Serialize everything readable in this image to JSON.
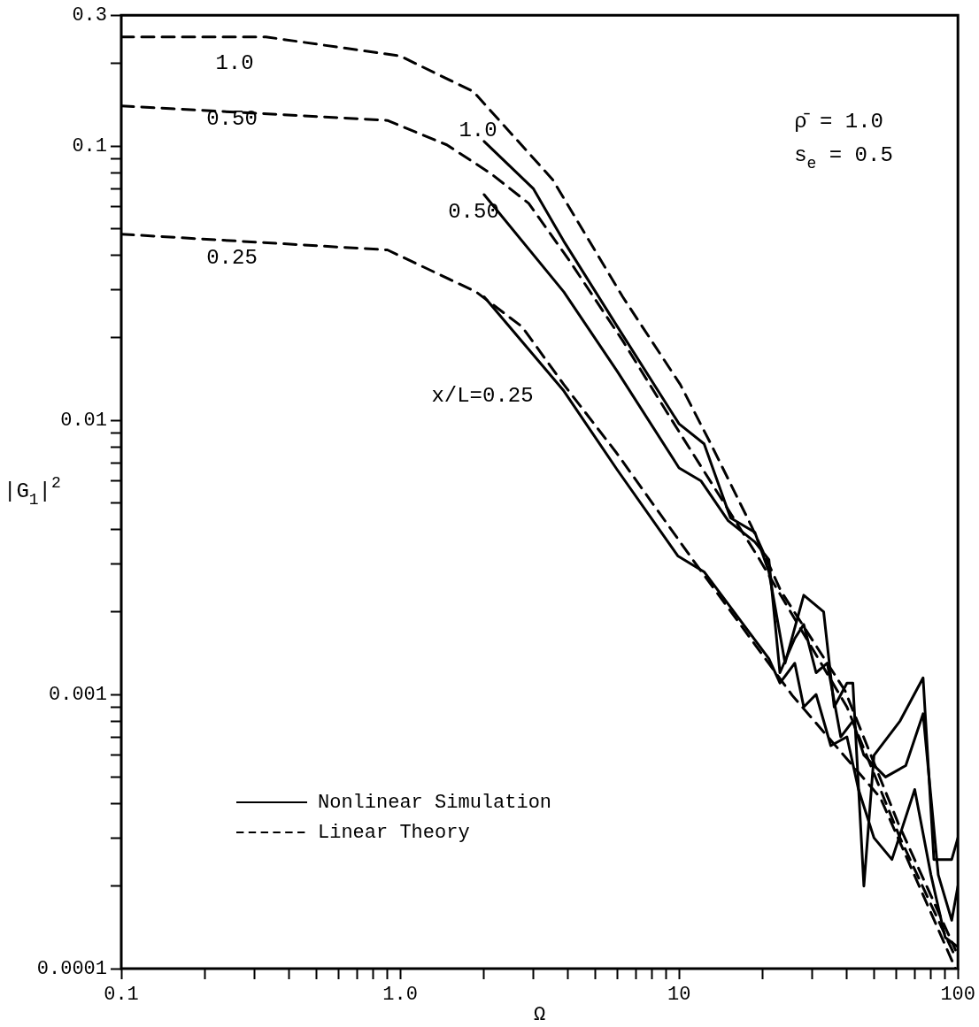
{
  "chart_data": {
    "type": "line",
    "xlabel": "Ω",
    "ylabel": "|G$_{1}$|$^{2}$",
    "log": "xy",
    "grid": false,
    "legend": "bottom left",
    "marker": "none",
    "xlim": [
      0.1,
      100
    ],
    "ylim": [
      0.0001,
      0.3
    ],
    "xticks": [
      0.1,
      {
        "value": 0.2,
        "label": null
      },
      {
        "value": 0.3,
        "label": null
      },
      {
        "value": 0.4,
        "label": null
      },
      {
        "value": 0.5,
        "label": null
      },
      {
        "value": 0.6,
        "label": null
      },
      {
        "value": 0.7,
        "label": null
      },
      {
        "value": 0.8,
        "label": null
      },
      {
        "value": 0.9,
        "label": null
      },
      {
        "value": 1,
        "label": "1.0"
      },
      {
        "value": 2,
        "label": null
      },
      {
        "value": 3,
        "label": null
      },
      {
        "value": 4,
        "label": null
      },
      {
        "value": 5,
        "label": null
      },
      {
        "value": 6,
        "label": null
      },
      {
        "value": 7,
        "label": null
      },
      {
        "value": 8,
        "label": null
      },
      {
        "value": 9,
        "label": null
      },
      10,
      {
        "value": 20,
        "label": null
      },
      {
        "value": 30,
        "label": null
      },
      {
        "value": 40,
        "label": null
      },
      {
        "value": 50,
        "label": null
      },
      {
        "value": 60,
        "label": null
      },
      {
        "value": 70,
        "label": null
      },
      {
        "value": 80,
        "label": null
      },
      {
        "value": 90,
        "label": null
      },
      100
    ],
    "yticks": [
      0.0001,
      {
        "value": 0.0002,
        "label": null
      },
      {
        "value": 0.0003,
        "label": null
      },
      {
        "value": 0.0004,
        "label": null
      },
      {
        "value": 0.0005,
        "label": null
      },
      {
        "value": 0.0006,
        "label": null
      },
      {
        "value": 0.0007,
        "label": null
      },
      {
        "value": 0.0008,
        "label": null
      },
      {
        "value": 0.0009,
        "label": null
      },
      0.001,
      {
        "value": 0.002,
        "label": null
      },
      {
        "value": 0.003,
        "label": null
      },
      {
        "value": 0.004,
        "label": null
      },
      {
        "value": 0.005,
        "label": null
      },
      {
        "value": 0.006,
        "label": null
      },
      {
        "value": 0.007,
        "label": null
      },
      {
        "value": 0.008,
        "label": null
      },
      {
        "value": 0.009,
        "label": null
      },
      0.01,
      {
        "value": 0.02,
        "label": null
      },
      {
        "value": 0.03,
        "label": null
      },
      {
        "value": 0.04,
        "label": null
      },
      {
        "value": 0.05,
        "label": null
      },
      {
        "value": 0.06,
        "label": null
      },
      {
        "value": 0.07,
        "label": null
      },
      {
        "value": 0.08,
        "label": null
      },
      {
        "value": 0.09,
        "label": null
      },
      0.1,
      {
        "value": 0.2,
        "label": null
      },
      0.3
    ],
    "series": [
      {
        "name": "Nonlinear Simulation",
        "color": "#000000",
        "line_style": "solid",
        "x": [
          2,
          3,
          3.86,
          6,
          10,
          12.3,
          15.3,
          18.7,
          21,
          24,
          28,
          33,
          36,
          40,
          42,
          46,
          50,
          62,
          75,
          82,
          95,
          100
        ],
        "values": [
          0.104,
          0.07,
          0.045,
          0.022,
          0.0097,
          0.0082,
          0.0044,
          0.0039,
          0.0028,
          0.0013,
          0.0023,
          0.002,
          0.0009,
          0.0011,
          0.0011,
          0.0002,
          0.0006,
          0.0008,
          0.00115,
          0.00025,
          0.00025,
          0.0003
        ]
      },
      {
        "color": "#000000",
        "line_style": "solid",
        "x": [
          2,
          3.86,
          6,
          10,
          12,
          15,
          18.7,
          21,
          23,
          26,
          28,
          31,
          34,
          38,
          42,
          46,
          55,
          65,
          75,
          85,
          95,
          100
        ],
        "values": [
          0.0665,
          0.0294,
          0.0151,
          0.0067,
          0.006,
          0.0043,
          0.0036,
          0.0031,
          0.0012,
          0.0016,
          0.0018,
          0.0012,
          0.0013,
          0.0007,
          0.0008,
          0.0006,
          0.0005,
          0.00055,
          0.00085,
          0.00022,
          0.00015,
          0.0002
        ]
      },
      {
        "color": "#000000",
        "line_style": "solid",
        "x": [
          2,
          3.86,
          6,
          9.9,
          12.3,
          21,
          23,
          26,
          28,
          31,
          35,
          40,
          44,
          50,
          58,
          70,
          80,
          90,
          100
        ],
        "values": [
          0.0282,
          0.0128,
          0.0066,
          0.0032,
          0.0028,
          0.00135,
          0.0011,
          0.0013,
          0.0009,
          0.001,
          0.00065,
          0.0007,
          0.00045,
          0.0003,
          0.00025,
          0.00045,
          0.00022,
          0.00013,
          0.00012
        ]
      },
      {
        "name": "Linear Theory",
        "color": "#000000",
        "line_style": "dashed",
        "x": [
          0.1,
          0.33,
          1,
          1.83,
          3.52,
          6.28,
          10.1,
          13,
          18.2,
          23.2,
          39.4,
          61,
          98
        ],
        "values": [
          0.25,
          0.25,
          0.213,
          0.158,
          0.0755,
          0.0282,
          0.0135,
          0.0082,
          0.0041,
          0.00238,
          0.00103,
          0.00034,
          0.000117
        ]
      },
      {
        "color": "#000000",
        "line_style": "dashed",
        "x": [
          0.1,
          0.9,
          1.47,
          2.11,
          2.89,
          4.06,
          6.28,
          9.2,
          19.1,
          40,
          62,
          98
        ],
        "values": [
          0.14,
          0.124,
          0.101,
          0.0795,
          0.0618,
          0.038,
          0.0195,
          0.0104,
          0.0032,
          0.0009,
          0.0003,
          0.00011
        ]
      },
      {
        "color": "#000000",
        "line_style": "dashed",
        "x": [
          0.1,
          0.9,
          1.87,
          2.74,
          3.86,
          5.97,
          11.2,
          25.5,
          52.7,
          98
        ],
        "values": [
          0.0477,
          0.0418,
          0.0294,
          0.0219,
          0.0135,
          0.0076,
          0.0031,
          0.00099,
          0.00042,
          0.0001
        ]
      }
    ],
    "annotations": [
      "1.0",
      "0.50",
      "0.25",
      "1.0",
      "0.50",
      "x/L=0.25",
      "ρ̄ = 1.0",
      "s$_{e}$ = 0.5"
    ]
  }
}
